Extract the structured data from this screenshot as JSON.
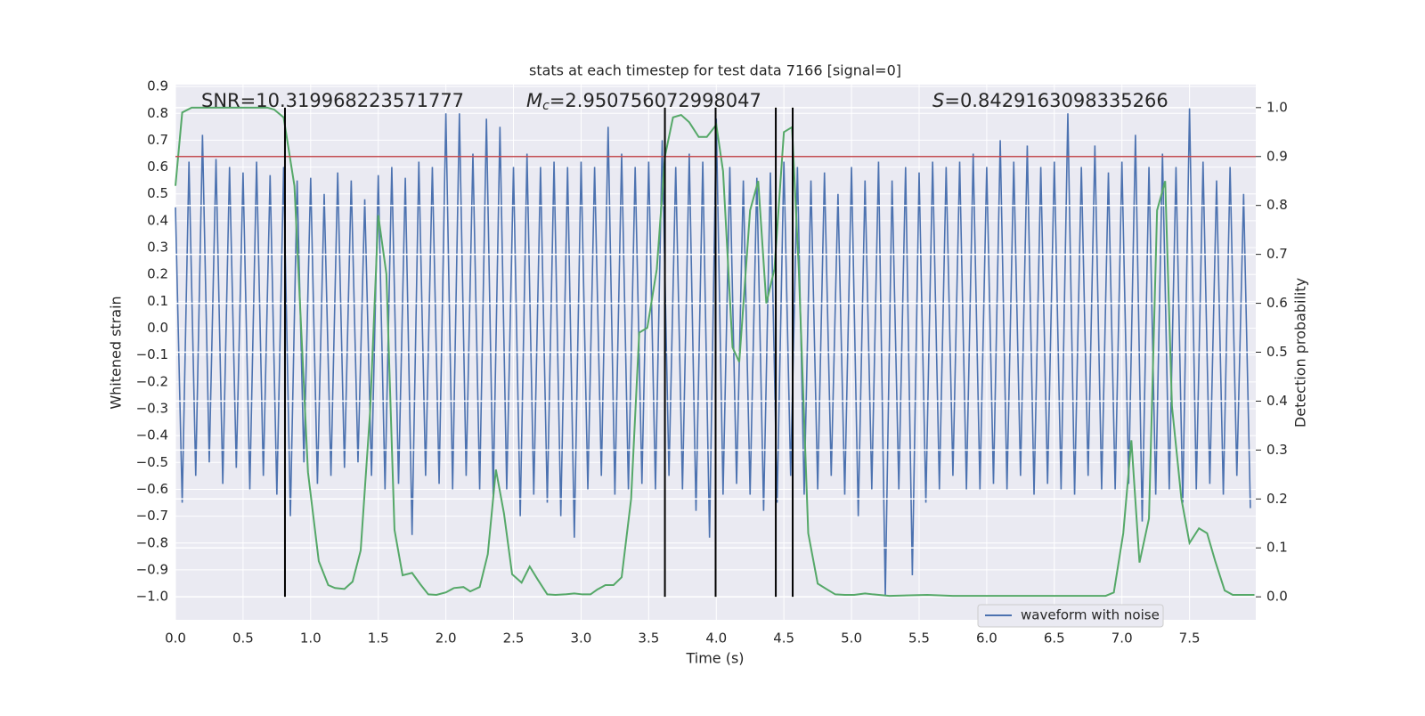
{
  "chart_data": {
    "type": "line",
    "title": "stats at each timestep for test data 7166 [signal=0]",
    "xlabel": "Time (s)",
    "ylabel": "Whitened strain",
    "y2label": "Detection probability",
    "annotations": [
      "SNR=10.319968223571777",
      {
        "symbol": "M",
        "sub": "c",
        "text": "=2.950756072998047"
      },
      {
        "symbol": "S",
        "text": "=0.8429163098335266"
      }
    ],
    "xlim": [
      0,
      7.99
    ],
    "ylim": [
      -1.086,
      0.907
    ],
    "y2lim": [
      -0.047,
      1.047
    ],
    "xticks": [
      {
        "value": 0,
        "label": "0.0"
      },
      0.5,
      {
        "value": 1,
        "label": "1.0"
      },
      1.5,
      {
        "value": 2,
        "label": "2.0"
      },
      2.5,
      {
        "value": 3,
        "label": "3.0"
      },
      3.5,
      {
        "value": 4,
        "label": "4.0"
      },
      4.5,
      {
        "value": 5,
        "label": "5.0"
      },
      5.5,
      {
        "value": 6,
        "label": "6.0"
      },
      6.5,
      {
        "value": 7,
        "label": "7.0"
      },
      7.5
    ],
    "yticks": [
      0.9,
      0.8,
      0.7,
      0.6,
      0.5,
      0.4,
      0.3,
      0.2,
      0.1,
      {
        "value": 0,
        "label": "0.0"
      },
      {
        "value": -0.1,
        "label": "−0.1"
      },
      {
        "value": -0.2,
        "label": "−0.2"
      },
      {
        "value": -0.3,
        "label": "−0.3"
      },
      {
        "value": -0.4,
        "label": "−0.4"
      },
      {
        "value": -0.5,
        "label": "−0.5"
      },
      {
        "value": -0.6,
        "label": "−0.6"
      },
      {
        "value": -0.7,
        "label": "−0.7"
      },
      {
        "value": -0.8,
        "label": "−0.8"
      },
      {
        "value": -0.9,
        "label": "−0.9"
      },
      {
        "value": -1,
        "label": "−1.0"
      }
    ],
    "y2ticks": [
      {
        "value": 0,
        "label": "0.0"
      },
      0.1,
      0.2,
      0.3,
      0.4,
      0.5,
      0.6,
      0.7,
      0.8,
      0.9,
      {
        "value": 1,
        "label": "1.0"
      }
    ],
    "grid": true,
    "legend_loc": "lower right",
    "series": [
      {
        "name": "waveform with noise",
        "color": "#4c72b0",
        "x": [
          0,
          0.05,
          0.1,
          0.15,
          0.2,
          0.25,
          0.3,
          0.35,
          0.4,
          0.45,
          0.5,
          0.55,
          0.6,
          0.65,
          0.7,
          0.75,
          0.8,
          0.85,
          0.9,
          0.95,
          1,
          1.05,
          1.1,
          1.15,
          1.2,
          1.25,
          1.3,
          1.35,
          1.4,
          1.45,
          1.5,
          1.55,
          1.6,
          1.65,
          1.7,
          1.75,
          1.8,
          1.85,
          1.9,
          1.95,
          2,
          2.05,
          2.1,
          2.15,
          2.2,
          2.25,
          2.3,
          2.35,
          2.4,
          2.45,
          2.5,
          2.55,
          2.6,
          2.65,
          2.7,
          2.75,
          2.8,
          2.85,
          2.9,
          2.95,
          3,
          3.05,
          3.1,
          3.15,
          3.2,
          3.25,
          3.3,
          3.35,
          3.4,
          3.45,
          3.5,
          3.55,
          3.6,
          3.65,
          3.7,
          3.75,
          3.8,
          3.85,
          3.9,
          3.95,
          4,
          4.05,
          4.1,
          4.15,
          4.2,
          4.25,
          4.3,
          4.35,
          4.4,
          4.45,
          4.5,
          4.55,
          4.6,
          4.65,
          4.7,
          4.75,
          4.8,
          4.85,
          4.9,
          4.95,
          5,
          5.05,
          5.1,
          5.15,
          5.2,
          5.25,
          5.3,
          5.35,
          5.4,
          5.45,
          5.5,
          5.55,
          5.6,
          5.65,
          5.7,
          5.75,
          5.8,
          5.85,
          5.9,
          5.95,
          6,
          6.05,
          6.1,
          6.15,
          6.2,
          6.25,
          6.3,
          6.35,
          6.4,
          6.45,
          6.5,
          6.55,
          6.6,
          6.65,
          6.7,
          6.75,
          6.8,
          6.85,
          6.9,
          6.95,
          7,
          7.05,
          7.1,
          7.15,
          7.2,
          7.25,
          7.3,
          7.35,
          7.4,
          7.45,
          7.5,
          7.55,
          7.6,
          7.65,
          7.7,
          7.75,
          7.8,
          7.85,
          7.9,
          7.95
        ],
        "values": [
          0.45,
          -0.65,
          0.62,
          -0.55,
          0.72,
          -0.5,
          0.63,
          -0.58,
          0.6,
          -0.52,
          0.58,
          -0.6,
          0.62,
          -0.55,
          0.57,
          -0.62,
          0.6,
          -0.7,
          0.55,
          -0.5,
          0.56,
          -0.58,
          0.5,
          -0.55,
          0.58,
          -0.52,
          0.55,
          -0.5,
          0.48,
          -0.55,
          0.57,
          -0.6,
          0.6,
          -0.58,
          0.56,
          -0.77,
          0.62,
          -0.55,
          0.6,
          -0.58,
          0.8,
          -0.6,
          0.8,
          -0.55,
          0.65,
          -0.6,
          0.78,
          -0.62,
          0.75,
          -0.6,
          0.6,
          -0.7,
          0.65,
          -0.62,
          0.6,
          -0.65,
          0.62,
          -0.7,
          0.6,
          -0.78,
          0.62,
          -0.6,
          0.6,
          -0.55,
          0.75,
          -0.62,
          0.65,
          -0.6,
          0.6,
          -0.58,
          0.62,
          -0.6,
          0.7,
          -0.55,
          0.6,
          -0.6,
          0.65,
          -0.68,
          0.62,
          -0.78,
          0.78,
          -0.62,
          0.6,
          -0.58,
          0.55,
          -0.62,
          0.56,
          -0.68,
          0.58,
          -0.65,
          0.62,
          -0.55,
          0.6,
          -0.62,
          0.55,
          -0.6,
          0.58,
          -0.55,
          0.5,
          -0.62,
          0.6,
          -0.7,
          0.55,
          -0.6,
          0.62,
          -1.0,
          0.55,
          -0.6,
          0.6,
          -0.92,
          0.58,
          -0.65,
          0.62,
          -0.6,
          0.6,
          -0.55,
          0.62,
          -0.6,
          0.65,
          -0.6,
          0.6,
          -0.58,
          0.7,
          -0.6,
          0.62,
          -0.55,
          0.68,
          -0.62,
          0.6,
          -0.58,
          0.62,
          -0.6,
          0.8,
          -0.62,
          0.6,
          -0.55,
          0.68,
          -0.6,
          0.58,
          -0.6,
          0.62,
          -0.58,
          0.72,
          -0.72,
          0.6,
          -0.62,
          0.65,
          -0.6,
          0.6,
          -0.65,
          0.82,
          -0.6,
          0.62,
          -0.58,
          0.55,
          -0.62,
          0.6,
          -0.55,
          0.5,
          -0.67
        ]
      },
      {
        "color": "#55a868",
        "axis": "y2",
        "x": [
          0,
          0.05,
          0.12,
          0.68,
          0.73,
          0.8,
          0.88,
          0.98,
          1.06,
          1.13,
          1.18,
          1.25,
          1.31,
          1.37,
          1.44,
          1.5,
          1.56,
          1.62,
          1.68,
          1.75,
          1.81,
          1.87,
          1.93,
          2,
          2.06,
          2.13,
          2.18,
          2.25,
          2.31,
          2.37,
          2.43,
          2.49,
          2.56,
          2.62,
          2.68,
          2.75,
          2.81,
          2.88,
          2.95,
          3.01,
          3.07,
          3.12,
          3.18,
          3.24,
          3.3,
          3.37,
          3.43,
          3.49,
          3.56,
          3.62,
          3.68,
          3.74,
          3.8,
          3.87,
          3.93,
          4,
          4.05,
          4.12,
          4.17,
          4.25,
          4.31,
          4.37,
          4.43,
          4.5,
          4.56,
          4.61,
          4.68,
          4.75,
          4.82,
          4.88,
          4.95,
          5.02,
          5.1,
          5.16,
          5.28,
          5.56,
          5.75,
          6.88,
          6.94,
          7.01,
          7.07,
          7.13,
          7.2,
          7.26,
          7.32,
          7.37,
          7.44,
          7.5,
          7.57,
          7.63,
          7.69,
          7.76,
          7.82,
          7.98
        ],
        "values": [
          0.84,
          0.99,
          1,
          1,
          0.996,
          0.98,
          0.84,
          0.255,
          0.073,
          0.024,
          0.018,
          0.016,
          0.031,
          0.095,
          0.38,
          0.78,
          0.66,
          0.137,
          0.044,
          0.049,
          0.026,
          0.005,
          0.004,
          0.009,
          0.018,
          0.02,
          0.011,
          0.02,
          0.087,
          0.26,
          0.17,
          0.046,
          0.029,
          0.062,
          0.035,
          0.005,
          0.004,
          0.005,
          0.007,
          0.005,
          0.005,
          0.015,
          0.024,
          0.024,
          0.04,
          0.2,
          0.54,
          0.55,
          0.67,
          0.9,
          0.98,
          0.985,
          0.97,
          0.94,
          0.94,
          0.965,
          0.87,
          0.51,
          0.48,
          0.79,
          0.85,
          0.6,
          0.67,
          0.95,
          0.96,
          0.67,
          0.13,
          0.027,
          0.015,
          0.005,
          0.004,
          0.004,
          0.007,
          0.005,
          0.002,
          0.004,
          0.002,
          0.002,
          0.009,
          0.13,
          0.32,
          0.07,
          0.16,
          0.79,
          0.85,
          0.39,
          0.2,
          0.11,
          0.14,
          0.13,
          0.073,
          0.013,
          0.004,
          0.004
        ]
      }
    ],
    "threshold": {
      "value": 0.9,
      "color": "#c44e52"
    },
    "vlines": {
      "x": [
        0.81,
        3.62,
        3.995,
        4.44,
        4.565
      ],
      "range": [
        0,
        1
      ],
      "color": "#000000"
    }
  }
}
